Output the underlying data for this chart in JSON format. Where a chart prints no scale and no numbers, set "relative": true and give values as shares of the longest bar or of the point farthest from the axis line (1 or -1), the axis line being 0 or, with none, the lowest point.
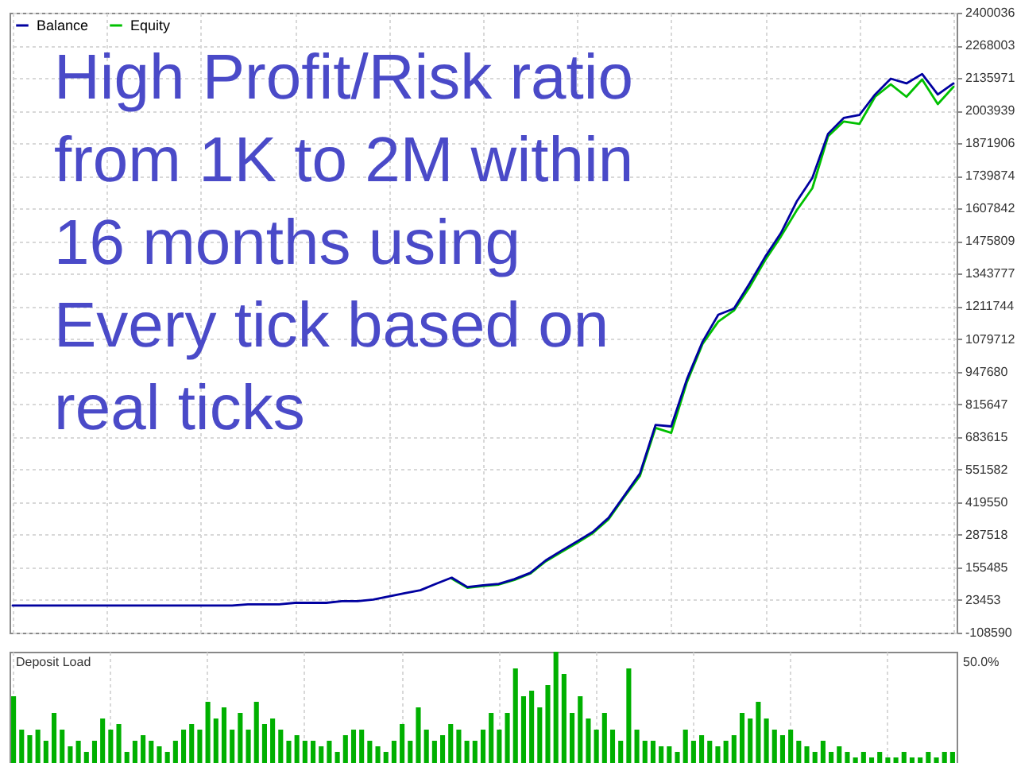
{
  "chart_data": [
    {
      "type": "line",
      "annotations": [
        "High Profit/Risk ratio\nfrom 1K to 2M within\n16 months using\nEvery tick based on\nreal ticks"
      ],
      "categories": [
        null,
        null,
        null,
        null,
        null,
        null,
        null,
        null,
        null,
        null,
        null,
        null,
        null,
        null,
        null,
        null,
        null,
        null,
        null,
        null,
        null,
        null,
        null,
        null,
        null,
        null,
        null,
        null,
        null,
        null,
        null,
        null,
        null,
        null,
        null,
        null,
        null,
        null,
        null,
        null,
        null,
        null,
        null,
        null,
        null,
        null,
        null,
        null,
        null,
        null,
        null,
        null,
        null,
        null,
        null,
        null,
        null,
        null,
        null,
        null,
        null
      ],
      "series": [
        {
          "name": "Balance",
          "color": "#0000a0",
          "values": [
            1000,
            1000,
            1000,
            1000,
            1000,
            1000,
            1000,
            1000,
            1000,
            1000,
            1000,
            1000,
            1000,
            1000,
            1000,
            6000,
            6000,
            6000,
            12000,
            12000,
            12000,
            19000,
            19000,
            25000,
            38000,
            51000,
            63000,
            89000,
            114000,
            76000,
            83000,
            89000,
            108000,
            133000,
            184000,
            223000,
            261000,
            299000,
            356000,
            445000,
            535000,
            732000,
            726000,
            917000,
            1069000,
            1178000,
            1203000,
            1305000,
            1413000,
            1509000,
            1636000,
            1732000,
            1910000,
            1974000,
            1986000,
            2069000,
            2133000,
            2114000,
            2152000,
            2069000,
            2114000
          ]
        },
        {
          "name": "Equity",
          "color": "#00c000",
          "values": [
            null,
            null,
            null,
            null,
            null,
            null,
            null,
            null,
            null,
            null,
            null,
            null,
            null,
            null,
            null,
            null,
            null,
            null,
            null,
            null,
            null,
            null,
            null,
            null,
            null,
            null,
            null,
            null,
            110000,
            73000,
            80000,
            86000,
            105000,
            130000,
            180000,
            218000,
            255000,
            294000,
            350000,
            440000,
            525000,
            720000,
            700000,
            905000,
            1060000,
            1150000,
            1195000,
            1290000,
            1400000,
            1495000,
            1600000,
            1690000,
            1900000,
            1960000,
            1950000,
            2060000,
            2110000,
            2060000,
            2130000,
            2030000,
            2100000
          ]
        }
      ],
      "ylim": [
        -108590,
        2400036
      ],
      "yticks": [
        -108590,
        23453,
        155485,
        287518,
        419550,
        551582,
        683615,
        815647,
        947680,
        1079712,
        1211744,
        1343777,
        1475809,
        1607842,
        1739874,
        1871906,
        2003939,
        2135971,
        2268003,
        2400036
      ],
      "grid": true,
      "legend": "top left"
    },
    {
      "type": "bar",
      "title": "Deposit Load",
      "annotations": [
        "50.0%"
      ],
      "relative": true,
      "color": "#00b000",
      "grid": "x",
      "categories": [
        null,
        null,
        null,
        null,
        null,
        null,
        null,
        null,
        null,
        null,
        null,
        null,
        null,
        null,
        null,
        null,
        null,
        null,
        null,
        null,
        null,
        null,
        null,
        null,
        null,
        null,
        null,
        null,
        null,
        null,
        null,
        null,
        null,
        null,
        null,
        null,
        null,
        null,
        null,
        null,
        null,
        null,
        null,
        null,
        null,
        null,
        null,
        null,
        null,
        null,
        null,
        null,
        null,
        null,
        null,
        null,
        null,
        null,
        null,
        null,
        null,
        null,
        null,
        null,
        null,
        null,
        null,
        null,
        null,
        null,
        null,
        null,
        null,
        null,
        null,
        null,
        null,
        null,
        null,
        null,
        null,
        null,
        null,
        null,
        null,
        null,
        null,
        null,
        null,
        null,
        null,
        null,
        null,
        null,
        null,
        null,
        null,
        null,
        null,
        null,
        null,
        null,
        null,
        null,
        null,
        null,
        null,
        null,
        null,
        null,
        null,
        null,
        null,
        null,
        null,
        null,
        null
      ],
      "values": [
        0.6,
        0.3,
        0.25,
        0.3,
        0.2,
        0.45,
        0.3,
        0.15,
        0.2,
        0.1,
        0.2,
        0.4,
        0.3,
        0.35,
        0.1,
        0.2,
        0.25,
        0.2,
        0.15,
        0.1,
        0.2,
        0.3,
        0.35,
        0.3,
        0.55,
        0.4,
        0.5,
        0.3,
        0.45,
        0.3,
        0.55,
        0.35,
        0.4,
        0.3,
        0.2,
        0.25,
        0.2,
        0.2,
        0.15,
        0.2,
        0.1,
        0.25,
        0.3,
        0.3,
        0.2,
        0.15,
        0.1,
        0.2,
        0.35,
        0.2,
        0.5,
        0.3,
        0.2,
        0.25,
        0.35,
        0.3,
        0.2,
        0.2,
        0.3,
        0.45,
        0.3,
        0.45,
        0.85,
        0.6,
        0.65,
        0.5,
        0.7,
        1,
        0.8,
        0.45,
        0.6,
        0.4,
        0.3,
        0.45,
        0.3,
        0.2,
        0.85,
        0.3,
        0.2,
        0.2,
        0.15,
        0.15,
        0.1,
        0.3,
        0.2,
        0.25,
        0.2,
        0.15,
        0.2,
        0.25,
        0.45,
        0.4,
        0.55,
        0.4,
        0.3,
        0.25,
        0.3,
        0.2,
        0.15,
        0.1,
        0.2,
        0.1,
        0.15,
        0.1,
        0.05,
        0.1,
        0.05,
        0.1,
        0.05,
        0.05,
        0.1,
        0.05,
        0.05,
        0.1,
        0.05,
        0.1,
        0.1
      ]
    }
  ]
}
